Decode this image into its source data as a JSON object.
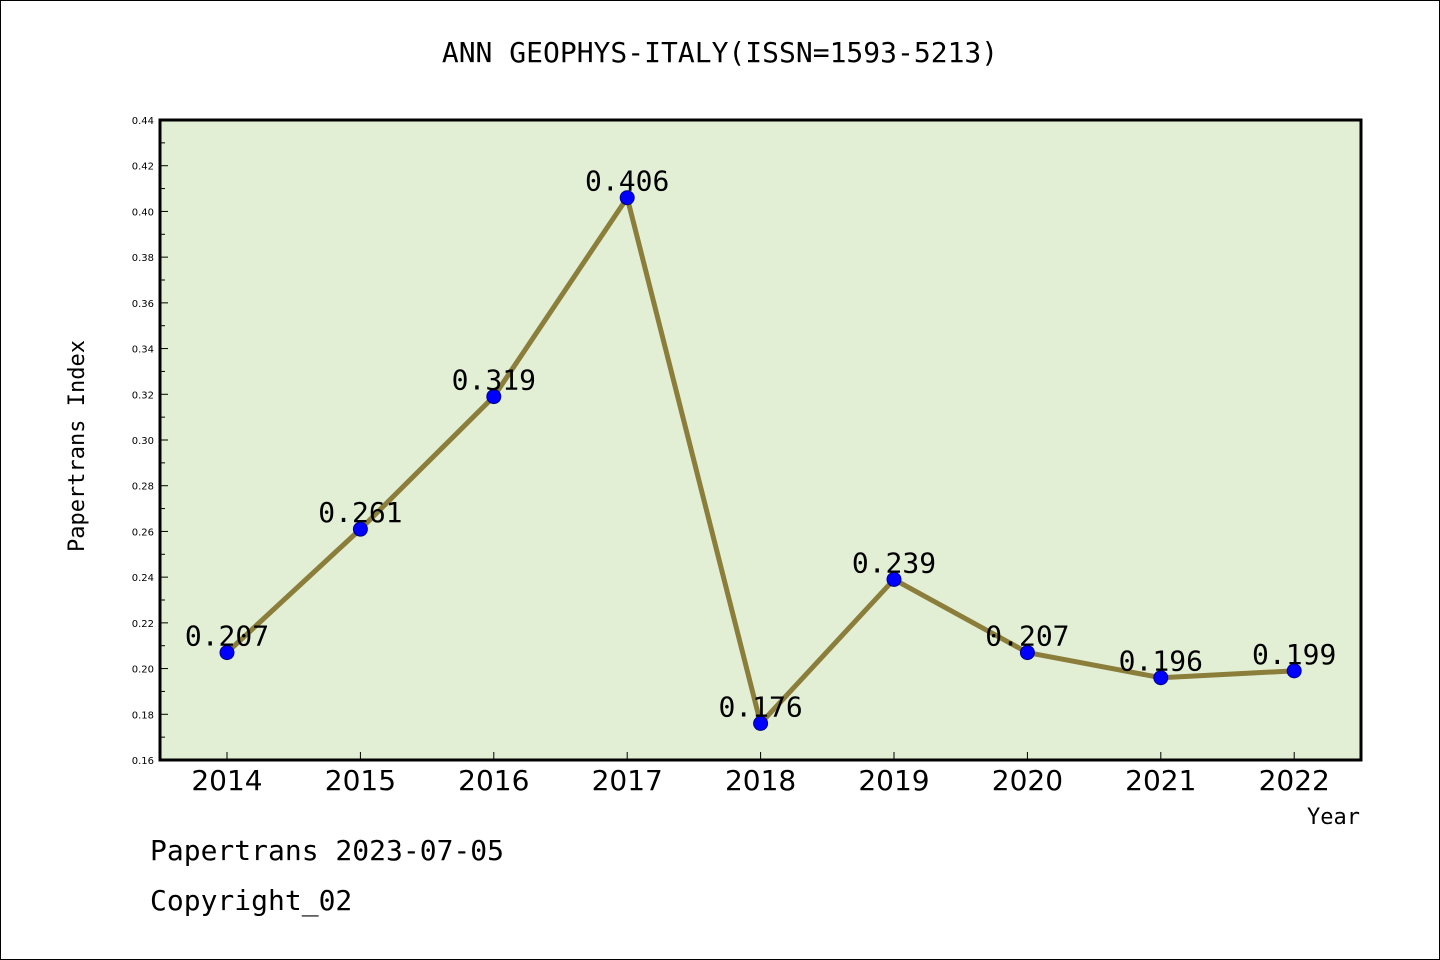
{
  "header": {
    "title": "ANN GEOPHYS-ITALY(ISSN=1593-5213)"
  },
  "footer": {
    "line1": "Papertrans 2023-07-05",
    "line2": "Copyright_02"
  },
  "colors": {
    "plot_bg": "#e2efd5",
    "line": "#8b7d3a",
    "marker": "#0000ff"
  },
  "chart_data": {
    "type": "line",
    "title": "ANN GEOPHYS-ITALY(ISSN=1593-5213)",
    "xlabel": "Year",
    "ylabel": "Papertrans Index",
    "categories": [
      "2014",
      "2015",
      "2016",
      "2017",
      "2018",
      "2019",
      "2020",
      "2021",
      "2022"
    ],
    "values": [
      0.207,
      0.261,
      0.319,
      0.406,
      0.176,
      0.239,
      0.207,
      0.196,
      0.199
    ],
    "value_labels": [
      "0.207",
      "0.261",
      "0.319",
      "0.406",
      "0.176",
      "0.239",
      "0.207",
      "0.196",
      "0.199"
    ],
    "ylim": [
      0.16,
      0.44
    ],
    "yticks": [
      "0.16",
      "0.18",
      "0.20",
      "0.22",
      "0.24",
      "0.26",
      "0.28",
      "0.30",
      "0.32",
      "0.34",
      "0.36",
      "0.38",
      "0.40",
      "0.42",
      "0.44"
    ],
    "grid": false,
    "legend": "none"
  }
}
